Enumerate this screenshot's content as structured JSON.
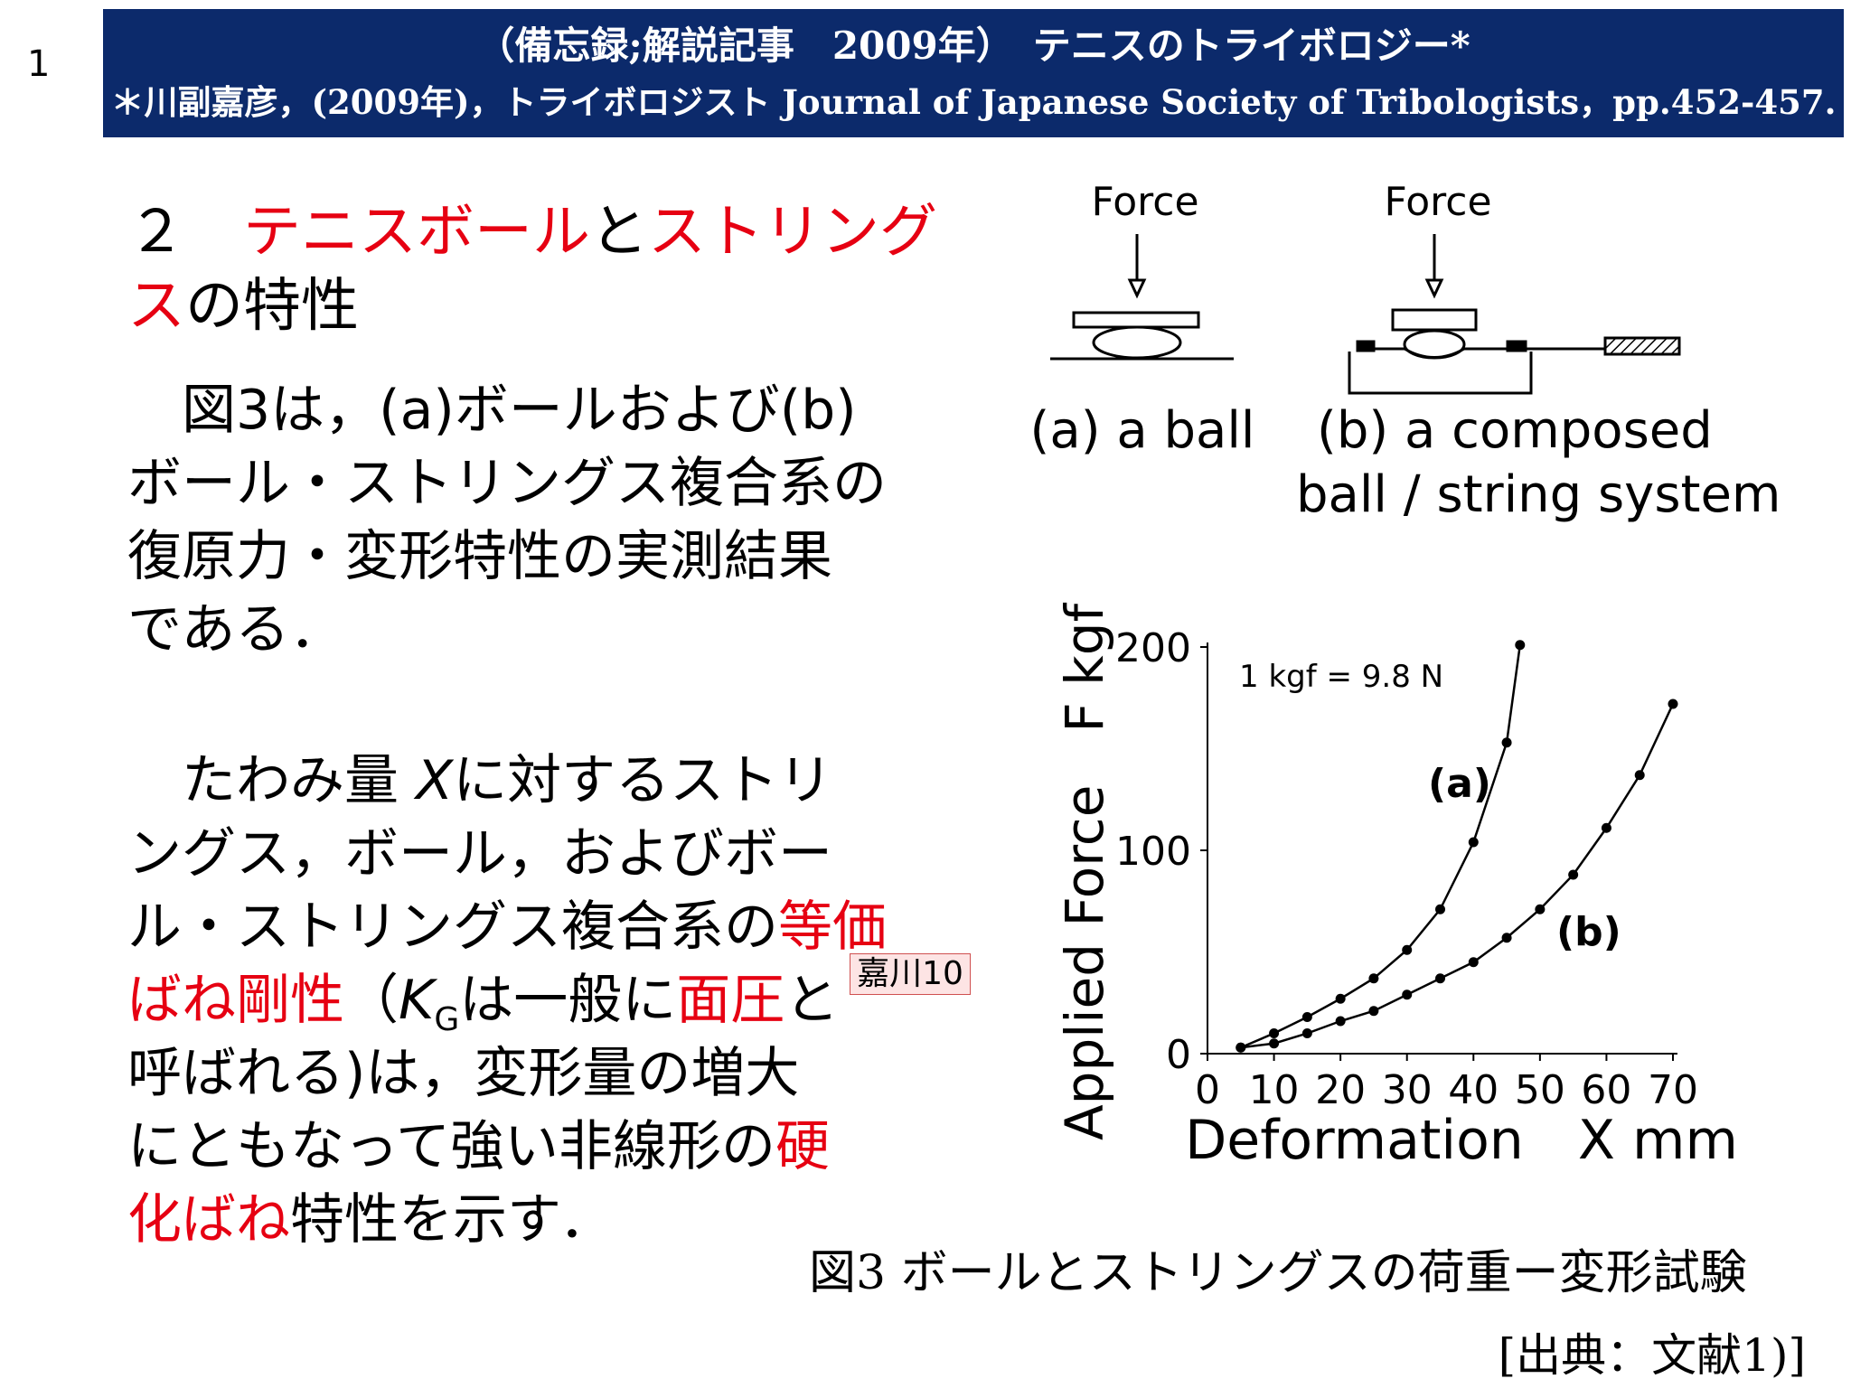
{
  "slide_number": "1",
  "header": {
    "line1": "（備忘録;解説記事　2009年）　テニスのトライボロジー*",
    "line2": "＊川副嘉彦，(2009年)，トライボロジスト Journal of Japanese Society of Tribologists，pp.452-457."
  },
  "heading": {
    "lines": [
      [
        {
          "text": "２　"
        },
        {
          "text": "テニスボール",
          "color": "#e60012"
        },
        {
          "text": "と"
        },
        {
          "text": "ストリング",
          "color": "#e60012"
        }
      ],
      [
        {
          "text": "ス",
          "color": "#e60012"
        },
        {
          "text": "の特性"
        }
      ]
    ]
  },
  "paragraphs": [
    {
      "lines": [
        [
          {
            "text": "　図3は，(a)ボールおよび(b)"
          }
        ],
        [
          {
            "text": "ボール・ストリングス複合系の"
          }
        ],
        [
          {
            "text": "復原力・変形特性の実測結果"
          }
        ],
        [
          {
            "text": "である．"
          }
        ]
      ]
    },
    {
      "lines": [
        [
          {
            "text": "　たわみ量 "
          },
          {
            "text": "X",
            "italic": true
          },
          {
            "text": "に対するストリ"
          }
        ],
        [
          {
            "text": "ングス，ボール，およびボー"
          }
        ],
        [
          {
            "text": "ル・ストリングス複合系の"
          },
          {
            "text": "等価",
            "color": "#e60012"
          }
        ],
        [
          {
            "text": "ばね剛性",
            "color": "#e60012"
          },
          {
            "text": "（"
          },
          {
            "text": "K",
            "italic": true
          },
          {
            "text": "G",
            "sub": true
          },
          {
            "text": "は一般に"
          },
          {
            "text": "面圧",
            "color": "#e60012"
          },
          {
            "text": "と"
          }
        ],
        [
          {
            "text": "呼ばれる)は，変形量の増大"
          }
        ],
        [
          {
            "text": "にともなって強い非線形の"
          },
          {
            "text": "硬",
            "color": "#e60012"
          }
        ],
        [
          {
            "text": "化ばね",
            "color": "#e60012"
          },
          {
            "text": "特性を示す．"
          }
        ]
      ]
    }
  ],
  "note": "嘉川10",
  "figure": {
    "force_labels": [
      "Force",
      "Force"
    ],
    "label_a": "(a) a ball",
    "label_b": [
      "(b) a composed",
      "ball / string system"
    ],
    "caption": "図3  ボールとストリングスの荷重ー変形試験",
    "source": "[出典：文献1)]"
  },
  "chart_data": {
    "type": "line",
    "x_label": "Deformation　X mm",
    "y_label": "Applied Force　F kgf",
    "annotations": [
      "1 kgf = 9.8 N",
      "(a)",
      "(b)"
    ],
    "xlim": [
      0,
      70
    ],
    "xticks": [
      0,
      10,
      20,
      30,
      40,
      50,
      60,
      70
    ],
    "ylim": [
      0,
      200
    ],
    "yticks": [
      0,
      100,
      200
    ],
    "series": [
      {
        "name": "(a)",
        "color": "#000000",
        "x": [
          5,
          10,
          15,
          20,
          25,
          30,
          35,
          40,
          45,
          47
        ],
        "values": [
          3,
          10,
          18,
          27,
          37,
          51,
          71,
          104,
          153,
          201
        ]
      },
      {
        "name": "(b)",
        "color": "#000000",
        "x": [
          5,
          10,
          15,
          20,
          25,
          30,
          35,
          40,
          45,
          50,
          55,
          60,
          65,
          70
        ],
        "values": [
          3,
          5,
          10,
          16,
          21,
          29,
          37,
          45,
          57,
          71,
          88,
          111,
          137,
          172
        ]
      }
    ]
  }
}
